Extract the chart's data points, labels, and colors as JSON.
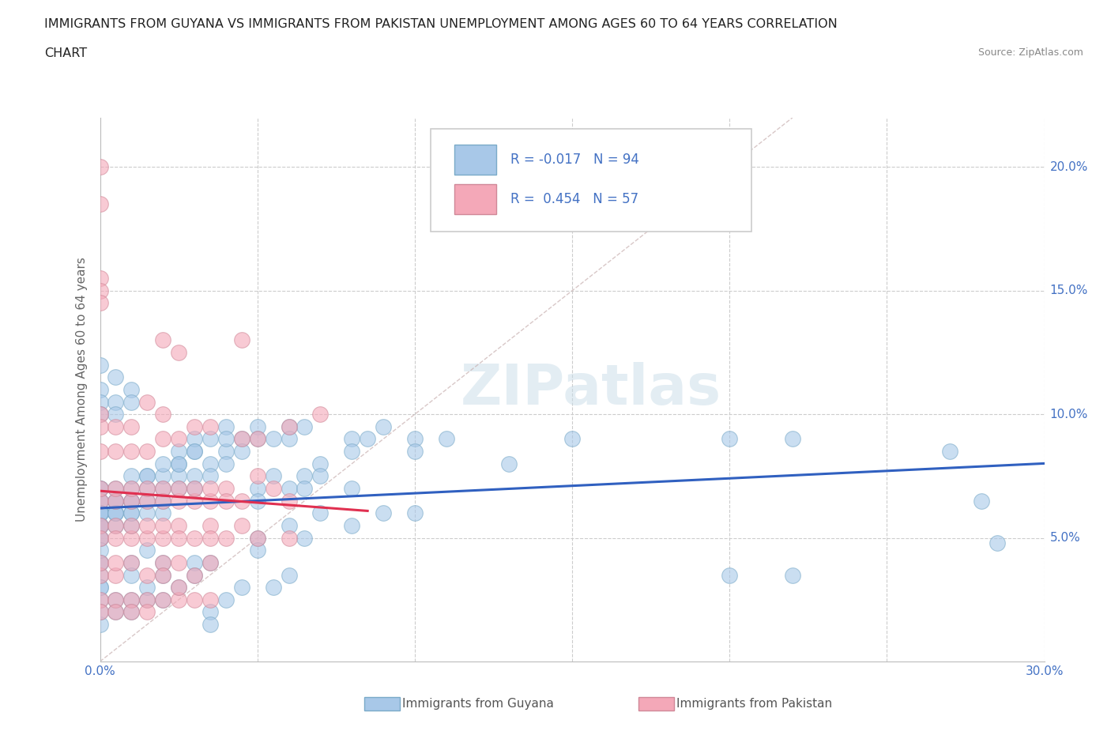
{
  "title_line1": "IMMIGRANTS FROM GUYANA VS IMMIGRANTS FROM PAKISTAN UNEMPLOYMENT AMONG AGES 60 TO 64 YEARS CORRELATION",
  "title_line2": "CHART",
  "source": "Source: ZipAtlas.com",
  "ylabel": "Unemployment Among Ages 60 to 64 years",
  "xlim": [
    0.0,
    0.3
  ],
  "ylim": [
    0.0,
    0.22
  ],
  "guyana_color": "#a8c8e8",
  "guyana_edge_color": "#7aaac8",
  "pakistan_color": "#f4a8b8",
  "pakistan_edge_color": "#d08898",
  "guyana_line_color": "#3060c0",
  "pakistan_line_color": "#e03050",
  "diagonal_color": "#c8a8a8",
  "watermark_text": "ZIPatlas",
  "watermark_color": "#c8dce8",
  "guyana_points": [
    [
      0.0,
      0.06
    ],
    [
      0.0,
      0.065
    ],
    [
      0.0,
      0.06
    ],
    [
      0.0,
      0.055
    ],
    [
      0.0,
      0.07
    ],
    [
      0.0,
      0.06
    ],
    [
      0.0,
      0.055
    ],
    [
      0.0,
      0.05
    ],
    [
      0.0,
      0.06
    ],
    [
      0.0,
      0.055
    ],
    [
      0.0,
      0.05
    ],
    [
      0.0,
      0.065
    ],
    [
      0.0,
      0.06
    ],
    [
      0.0,
      0.04
    ],
    [
      0.0,
      0.07
    ],
    [
      0.0,
      0.055
    ],
    [
      0.005,
      0.06
    ],
    [
      0.005,
      0.065
    ],
    [
      0.005,
      0.06
    ],
    [
      0.005,
      0.055
    ],
    [
      0.005,
      0.07
    ],
    [
      0.005,
      0.06
    ],
    [
      0.005,
      0.065
    ],
    [
      0.01,
      0.065
    ],
    [
      0.01,
      0.07
    ],
    [
      0.01,
      0.06
    ],
    [
      0.01,
      0.075
    ],
    [
      0.01,
      0.055
    ],
    [
      0.01,
      0.065
    ],
    [
      0.01,
      0.06
    ],
    [
      0.015,
      0.065
    ],
    [
      0.015,
      0.07
    ],
    [
      0.015,
      0.075
    ],
    [
      0.015,
      0.06
    ],
    [
      0.02,
      0.07
    ],
    [
      0.02,
      0.065
    ],
    [
      0.02,
      0.075
    ],
    [
      0.02,
      0.06
    ],
    [
      0.025,
      0.08
    ],
    [
      0.025,
      0.075
    ],
    [
      0.025,
      0.07
    ],
    [
      0.03,
      0.085
    ],
    [
      0.03,
      0.075
    ],
    [
      0.03,
      0.07
    ],
    [
      0.035,
      0.08
    ],
    [
      0.035,
      0.075
    ],
    [
      0.04,
      0.085
    ],
    [
      0.04,
      0.08
    ],
    [
      0.045,
      0.09
    ],
    [
      0.045,
      0.085
    ],
    [
      0.05,
      0.095
    ],
    [
      0.05,
      0.09
    ],
    [
      0.055,
      0.09
    ],
    [
      0.06,
      0.095
    ],
    [
      0.06,
      0.09
    ],
    [
      0.065,
      0.095
    ],
    [
      0.0,
      0.11
    ],
    [
      0.0,
      0.105
    ],
    [
      0.0,
      0.1
    ],
    [
      0.005,
      0.105
    ],
    [
      0.005,
      0.1
    ],
    [
      0.01,
      0.11
    ],
    [
      0.01,
      0.105
    ],
    [
      0.0,
      0.12
    ],
    [
      0.005,
      0.115
    ],
    [
      0.015,
      0.075
    ],
    [
      0.02,
      0.08
    ],
    [
      0.025,
      0.085
    ],
    [
      0.025,
      0.08
    ],
    [
      0.03,
      0.09
    ],
    [
      0.03,
      0.085
    ],
    [
      0.035,
      0.09
    ],
    [
      0.04,
      0.095
    ],
    [
      0.04,
      0.09
    ],
    [
      0.05,
      0.07
    ],
    [
      0.05,
      0.065
    ],
    [
      0.055,
      0.075
    ],
    [
      0.06,
      0.07
    ],
    [
      0.065,
      0.075
    ],
    [
      0.065,
      0.07
    ],
    [
      0.07,
      0.08
    ],
    [
      0.07,
      0.075
    ],
    [
      0.08,
      0.09
    ],
    [
      0.08,
      0.085
    ],
    [
      0.085,
      0.09
    ],
    [
      0.09,
      0.095
    ],
    [
      0.1,
      0.09
    ],
    [
      0.1,
      0.085
    ],
    [
      0.11,
      0.09
    ],
    [
      0.15,
      0.09
    ],
    [
      0.2,
      0.09
    ],
    [
      0.22,
      0.09
    ],
    [
      0.27,
      0.085
    ],
    [
      0.285,
      0.048
    ],
    [
      0.0,
      0.03
    ],
    [
      0.0,
      0.035
    ],
    [
      0.0,
      0.04
    ],
    [
      0.0,
      0.045
    ],
    [
      0.0,
      0.025
    ],
    [
      0.0,
      0.03
    ],
    [
      0.01,
      0.04
    ],
    [
      0.01,
      0.035
    ],
    [
      0.015,
      0.045
    ],
    [
      0.02,
      0.04
    ],
    [
      0.02,
      0.035
    ],
    [
      0.03,
      0.04
    ],
    [
      0.03,
      0.035
    ],
    [
      0.035,
      0.04
    ],
    [
      0.05,
      0.05
    ],
    [
      0.05,
      0.045
    ],
    [
      0.06,
      0.055
    ],
    [
      0.07,
      0.06
    ],
    [
      0.08,
      0.07
    ],
    [
      0.13,
      0.08
    ],
    [
      0.2,
      0.035
    ],
    [
      0.22,
      0.035
    ],
    [
      0.28,
      0.065
    ],
    [
      0.0,
      0.015
    ],
    [
      0.0,
      0.02
    ],
    [
      0.005,
      0.02
    ],
    [
      0.005,
      0.025
    ],
    [
      0.01,
      0.025
    ],
    [
      0.01,
      0.02
    ],
    [
      0.015,
      0.025
    ],
    [
      0.015,
      0.03
    ],
    [
      0.02,
      0.025
    ],
    [
      0.025,
      0.03
    ],
    [
      0.035,
      0.02
    ],
    [
      0.035,
      0.015
    ],
    [
      0.04,
      0.025
    ],
    [
      0.045,
      0.03
    ],
    [
      0.055,
      0.03
    ],
    [
      0.06,
      0.035
    ],
    [
      0.065,
      0.05
    ],
    [
      0.08,
      0.055
    ],
    [
      0.09,
      0.06
    ],
    [
      0.1,
      0.06
    ]
  ],
  "pakistan_points": [
    [
      0.0,
      0.2
    ],
    [
      0.0,
      0.185
    ],
    [
      0.0,
      0.155
    ],
    [
      0.0,
      0.15
    ],
    [
      0.0,
      0.145
    ],
    [
      0.02,
      0.13
    ],
    [
      0.025,
      0.125
    ],
    [
      0.045,
      0.13
    ],
    [
      0.0,
      0.1
    ],
    [
      0.0,
      0.095
    ],
    [
      0.005,
      0.095
    ],
    [
      0.01,
      0.095
    ],
    [
      0.015,
      0.105
    ],
    [
      0.02,
      0.1
    ],
    [
      0.0,
      0.085
    ],
    [
      0.005,
      0.085
    ],
    [
      0.01,
      0.085
    ],
    [
      0.015,
      0.085
    ],
    [
      0.02,
      0.09
    ],
    [
      0.025,
      0.09
    ],
    [
      0.03,
      0.095
    ],
    [
      0.035,
      0.095
    ],
    [
      0.045,
      0.09
    ],
    [
      0.05,
      0.09
    ],
    [
      0.06,
      0.095
    ],
    [
      0.07,
      0.1
    ],
    [
      0.0,
      0.065
    ],
    [
      0.0,
      0.07
    ],
    [
      0.005,
      0.065
    ],
    [
      0.005,
      0.07
    ],
    [
      0.01,
      0.065
    ],
    [
      0.01,
      0.07
    ],
    [
      0.015,
      0.065
    ],
    [
      0.015,
      0.07
    ],
    [
      0.02,
      0.065
    ],
    [
      0.02,
      0.07
    ],
    [
      0.025,
      0.065
    ],
    [
      0.025,
      0.07
    ],
    [
      0.03,
      0.065
    ],
    [
      0.03,
      0.07
    ],
    [
      0.035,
      0.065
    ],
    [
      0.035,
      0.07
    ],
    [
      0.04,
      0.07
    ],
    [
      0.04,
      0.065
    ],
    [
      0.045,
      0.065
    ],
    [
      0.05,
      0.075
    ],
    [
      0.055,
      0.07
    ],
    [
      0.06,
      0.065
    ],
    [
      0.0,
      0.055
    ],
    [
      0.0,
      0.05
    ],
    [
      0.005,
      0.055
    ],
    [
      0.005,
      0.05
    ],
    [
      0.01,
      0.05
    ],
    [
      0.01,
      0.055
    ],
    [
      0.015,
      0.05
    ],
    [
      0.015,
      0.055
    ],
    [
      0.02,
      0.05
    ],
    [
      0.02,
      0.055
    ],
    [
      0.025,
      0.055
    ],
    [
      0.025,
      0.05
    ],
    [
      0.03,
      0.05
    ],
    [
      0.035,
      0.055
    ],
    [
      0.035,
      0.05
    ],
    [
      0.04,
      0.05
    ],
    [
      0.045,
      0.055
    ],
    [
      0.05,
      0.05
    ],
    [
      0.06,
      0.05
    ],
    [
      0.0,
      0.035
    ],
    [
      0.0,
      0.04
    ],
    [
      0.005,
      0.035
    ],
    [
      0.005,
      0.04
    ],
    [
      0.01,
      0.04
    ],
    [
      0.015,
      0.035
    ],
    [
      0.02,
      0.04
    ],
    [
      0.02,
      0.035
    ],
    [
      0.025,
      0.04
    ],
    [
      0.03,
      0.035
    ],
    [
      0.035,
      0.04
    ],
    [
      0.0,
      0.025
    ],
    [
      0.0,
      0.02
    ],
    [
      0.005,
      0.025
    ],
    [
      0.005,
      0.02
    ],
    [
      0.01,
      0.025
    ],
    [
      0.01,
      0.02
    ],
    [
      0.015,
      0.025
    ],
    [
      0.015,
      0.02
    ],
    [
      0.02,
      0.025
    ],
    [
      0.025,
      0.025
    ],
    [
      0.03,
      0.025
    ],
    [
      0.025,
      0.03
    ],
    [
      0.035,
      0.025
    ]
  ]
}
